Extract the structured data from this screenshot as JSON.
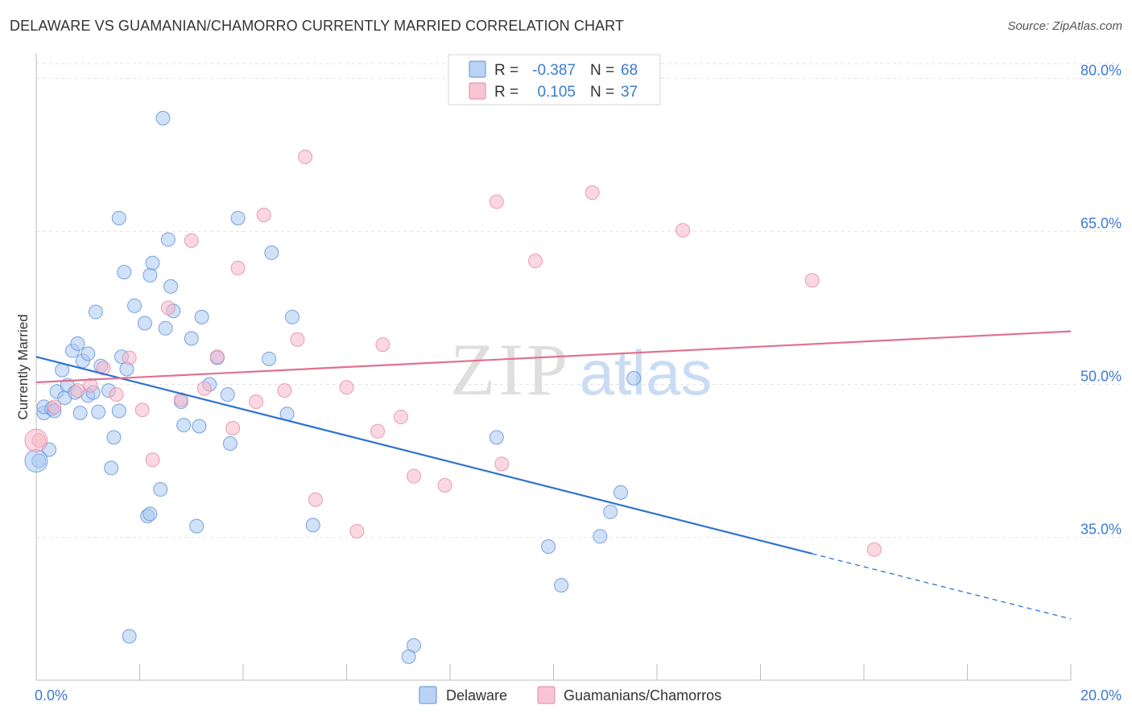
{
  "title": "DELAWARE VS GUAMANIAN/CHAMORRO CURRENTLY MARRIED CORRELATION CHART",
  "source": "Source: ZipAtlas.com",
  "watermark": {
    "zip": "ZIP",
    "atlas": "atlas"
  },
  "legend": {
    "r_label": "R =",
    "n_label": "N =",
    "rows": [
      {
        "r": "-0.387",
        "n": "68",
        "color": "#a9c8f2"
      },
      {
        "r": "0.105",
        "n": "37",
        "color": "#f7b6c9"
      }
    ]
  },
  "bottom_legend": [
    "Delaware",
    "Guamanians/Chamorros"
  ],
  "chart_data": {
    "type": "scatter",
    "xlabel": "",
    "ylabel": "Currently Married",
    "xlim": [
      0,
      20
    ],
    "ylim": [
      21,
      82
    ],
    "x_tick_labels": [
      {
        "value": 0,
        "label": "0.0%"
      },
      {
        "value": 20,
        "label": "20.0%"
      }
    ],
    "y_tick_labels": [
      {
        "value": 80,
        "label": "80.0%"
      },
      {
        "value": 65,
        "label": "65.0%"
      },
      {
        "value": 50,
        "label": "50.0%"
      },
      {
        "value": 35,
        "label": "35.0%"
      }
    ],
    "series": [
      {
        "name": "Delaware",
        "color": "#a9c8f2",
        "stroke": "#5a8fd8",
        "trend": {
          "x0": 0.0,
          "y0": 52.7,
          "x1": 15.0,
          "y1": 33.4,
          "dashed_to_x": 20.0,
          "dashed_to_y": 27.0,
          "color": "#2f72d0"
        },
        "points": [
          [
            0.05,
            42.5
          ],
          [
            0.15,
            47.2
          ],
          [
            0.15,
            47.8
          ],
          [
            0.25,
            43.6
          ],
          [
            0.3,
            47.6
          ],
          [
            0.35,
            47.4
          ],
          [
            0.4,
            49.3
          ],
          [
            0.5,
            51.4
          ],
          [
            0.55,
            48.7
          ],
          [
            0.6,
            49.9
          ],
          [
            0.7,
            53.3
          ],
          [
            0.75,
            49.2
          ],
          [
            0.8,
            54.0
          ],
          [
            0.85,
            47.2
          ],
          [
            0.9,
            52.3
          ],
          [
            1.0,
            48.9
          ],
          [
            1.0,
            53.0
          ],
          [
            1.1,
            49.2
          ],
          [
            1.15,
            57.1
          ],
          [
            1.2,
            47.3
          ],
          [
            1.25,
            51.8
          ],
          [
            1.4,
            49.4
          ],
          [
            1.45,
            41.8
          ],
          [
            1.5,
            44.8
          ],
          [
            1.6,
            66.3
          ],
          [
            1.6,
            47.4
          ],
          [
            1.65,
            52.7
          ],
          [
            1.7,
            61.0
          ],
          [
            1.75,
            51.5
          ],
          [
            1.8,
            25.3
          ],
          [
            1.9,
            57.7
          ],
          [
            2.1,
            56.0
          ],
          [
            2.15,
            37.1
          ],
          [
            2.2,
            37.3
          ],
          [
            2.2,
            60.7
          ],
          [
            2.25,
            61.9
          ],
          [
            2.4,
            39.7
          ],
          [
            2.45,
            76.1
          ],
          [
            2.5,
            55.5
          ],
          [
            2.55,
            64.2
          ],
          [
            2.6,
            59.6
          ],
          [
            2.65,
            57.2
          ],
          [
            2.8,
            48.3
          ],
          [
            2.85,
            46.0
          ],
          [
            3.0,
            54.5
          ],
          [
            3.1,
            36.1
          ],
          [
            3.15,
            45.9
          ],
          [
            3.2,
            56.6
          ],
          [
            3.35,
            50.0
          ],
          [
            3.5,
            52.6
          ],
          [
            3.7,
            49.0
          ],
          [
            3.75,
            44.2
          ],
          [
            3.9,
            66.3
          ],
          [
            4.55,
            62.9
          ],
          [
            4.5,
            52.5
          ],
          [
            4.85,
            47.1
          ],
          [
            4.95,
            56.6
          ],
          [
            5.35,
            36.2
          ],
          [
            7.3,
            24.4
          ],
          [
            7.2,
            23.3
          ],
          [
            8.9,
            44.8
          ],
          [
            9.9,
            34.1
          ],
          [
            10.15,
            30.3
          ],
          [
            10.9,
            35.1
          ],
          [
            11.1,
            37.5
          ],
          [
            11.3,
            39.4
          ],
          [
            11.55,
            50.6
          ],
          [
            0.0,
            42.5
          ]
        ]
      },
      {
        "name": "Guamanians/Chamorros",
        "color": "#f7b6c9",
        "stroke": "#e089a5",
        "trend": {
          "x0": 0.0,
          "y0": 50.2,
          "x1": 20.0,
          "y1": 55.2,
          "color": "#e0718f"
        },
        "points": [
          [
            0.05,
            44.5
          ],
          [
            0.35,
            47.8
          ],
          [
            0.8,
            49.4
          ],
          [
            1.05,
            49.9
          ],
          [
            1.3,
            51.6
          ],
          [
            1.55,
            49.0
          ],
          [
            1.8,
            52.6
          ],
          [
            2.05,
            47.5
          ],
          [
            2.25,
            42.6
          ],
          [
            2.55,
            57.5
          ],
          [
            2.8,
            48.5
          ],
          [
            3.0,
            64.1
          ],
          [
            3.25,
            49.6
          ],
          [
            3.5,
            52.7
          ],
          [
            3.8,
            45.7
          ],
          [
            3.9,
            61.4
          ],
          [
            4.25,
            48.3
          ],
          [
            4.4,
            66.6
          ],
          [
            4.8,
            49.4
          ],
          [
            5.05,
            54.4
          ],
          [
            5.2,
            72.3
          ],
          [
            5.4,
            38.7
          ],
          [
            6.0,
            49.7
          ],
          [
            6.2,
            35.6
          ],
          [
            6.6,
            45.4
          ],
          [
            6.7,
            53.9
          ],
          [
            7.05,
            46.8
          ],
          [
            7.3,
            41.0
          ],
          [
            7.9,
            40.1
          ],
          [
            8.9,
            67.9
          ],
          [
            9.0,
            42.2
          ],
          [
            9.65,
            62.1
          ],
          [
            10.75,
            68.8
          ],
          [
            12.5,
            65.1
          ],
          [
            15.0,
            60.2
          ],
          [
            16.2,
            33.8
          ],
          [
            0.0,
            44.5
          ]
        ]
      }
    ]
  }
}
